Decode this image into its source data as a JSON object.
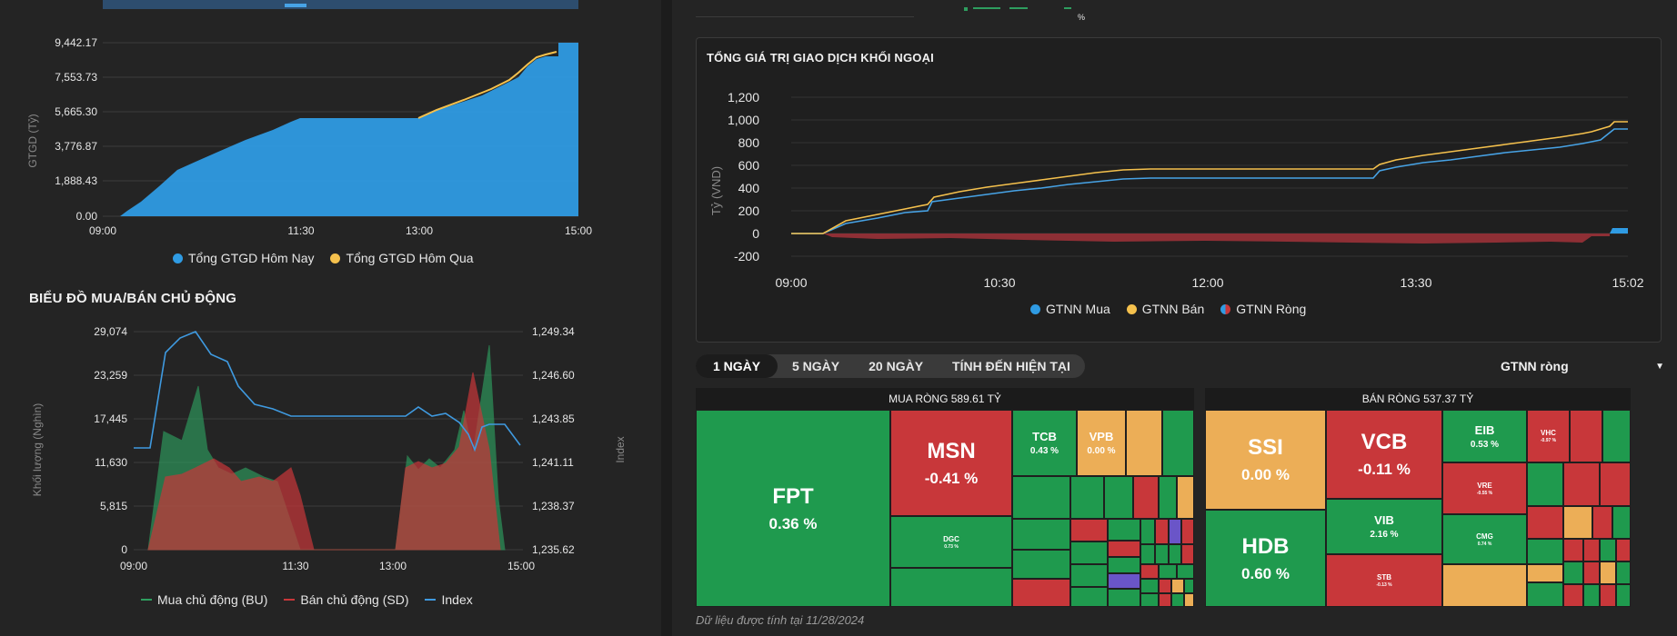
{
  "colors": {
    "background": "#242424",
    "today_blue": "#2f9be3",
    "yesterday_yellow": "#f5c14d",
    "buy_green": "#2e9e5f",
    "sell_red": "#c8373a",
    "index_blue": "#3f9ae0",
    "net_red": "#8e2f35"
  },
  "top_left_chart": {
    "ylabel": "GTGD (Tỷ)",
    "yticks": [
      "9,442.17",
      "7,553.73",
      "5,665.30",
      "3,776.87",
      "1,888.43",
      "0.00"
    ],
    "xticks": [
      "09:00",
      "11:30",
      "13:00",
      "15:00"
    ],
    "legend": [
      {
        "label": "Tổng GTGD Hôm Nay",
        "color": "#2f9be3"
      },
      {
        "label": "Tổng GTGD Hôm Qua",
        "color": "#f5c14d"
      }
    ]
  },
  "active_chart": {
    "title": "BIỂU ĐỒ MUA/BÁN CHỦ ĐỘNG",
    "ylabel_left": "Khối lượng (Nghìn)",
    "ylabel_right": "Index",
    "yticks_left": [
      "29,074",
      "23,259",
      "17,445",
      "11,630",
      "5,815",
      "0"
    ],
    "yticks_right": [
      "1,249.34",
      "1,246.60",
      "1,243.85",
      "1,241.11",
      "1,238.37",
      "1,235.62"
    ],
    "xticks": [
      "09:00",
      "11:30",
      "13:00",
      "15:00"
    ],
    "legend": [
      {
        "label": "Mua chủ động (BU)",
        "color": "#2e9e5f"
      },
      {
        "label": "Bán chủ động (SD)",
        "color": "#c8373a"
      },
      {
        "label": "Index",
        "color": "#3f9ae0"
      }
    ]
  },
  "foreign_chart": {
    "title": "TỔNG GIÁ TRỊ GIAO DỊCH KHỐI NGOẠI",
    "ylabel": "Tỷ (VND)",
    "yticks": [
      "1,200",
      "1,000",
      "800",
      "600",
      "400",
      "200",
      "0",
      "-200"
    ],
    "xticks": [
      "09:00",
      "10:30",
      "12:00",
      "13:30",
      "15:02"
    ],
    "legend": [
      {
        "label": "GTNN Mua",
        "color": "#2f9be3"
      },
      {
        "label": "GTNN Bán",
        "color": "#f5c14d"
      },
      {
        "label": "GTNN Ròng",
        "color": "#c8373a"
      }
    ]
  },
  "top_fragment_percent": "%",
  "tabs": [
    "1 NGÀY",
    "5 NGÀY",
    "20 NGÀY",
    "TÍNH ĐẾN HIỆN TẠI"
  ],
  "select": {
    "value": "GTNN ròng",
    "icon": "caret-down-icon"
  },
  "treemap_buy": {
    "title": "MUA RÒNG 589.61 TỶ",
    "tiles": [
      {
        "ticker": "FPT",
        "pct": "0.36 %"
      },
      {
        "ticker": "MSN",
        "pct": "-0.41 %"
      },
      {
        "ticker": "TCB",
        "pct": "0.43 %"
      },
      {
        "ticker": "VPB",
        "pct": "0.00 %"
      },
      {
        "ticker": "DGC",
        "pct": "0.73 %"
      }
    ]
  },
  "treemap_sell": {
    "title": "BÁN RÒNG 537.37 TỶ",
    "tiles": [
      {
        "ticker": "SSI",
        "pct": "0.00 %"
      },
      {
        "ticker": "VCB",
        "pct": "-0.11 %"
      },
      {
        "ticker": "EIB",
        "pct": "0.53 %"
      },
      {
        "ticker": "VHC",
        "pct": "-0.97 %"
      },
      {
        "ticker": "VRE",
        "pct": "-0.55 %"
      },
      {
        "ticker": "HDB",
        "pct": "0.60 %"
      },
      {
        "ticker": "VIB",
        "pct": "2.16 %"
      },
      {
        "ticker": "CMG",
        "pct": "0.74 %"
      },
      {
        "ticker": "STB",
        "pct": "-0.13 %"
      }
    ]
  },
  "footnote": "Dữ liệu được tính tại 11/28/2024"
}
